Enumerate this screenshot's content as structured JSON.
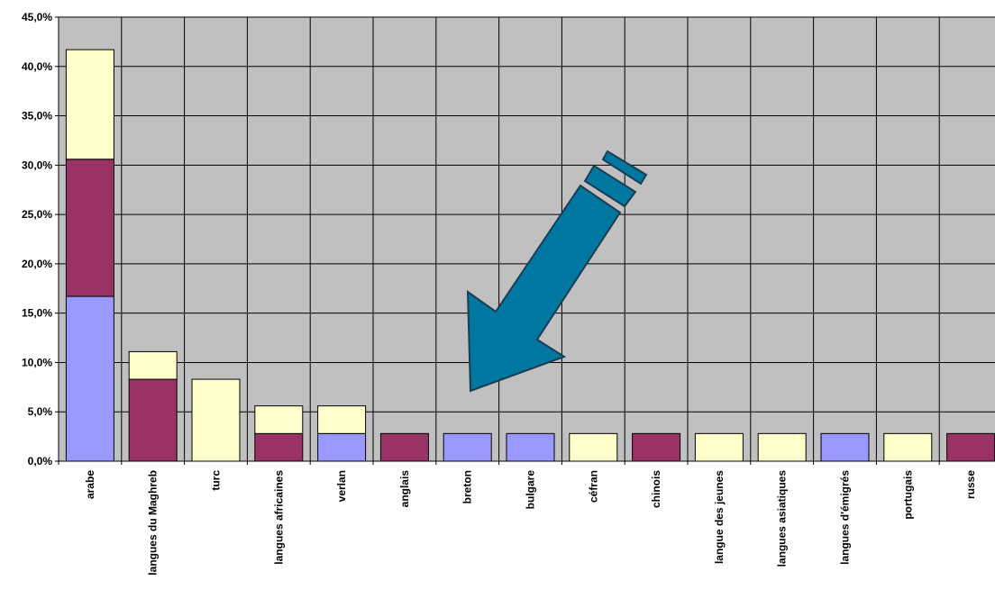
{
  "chart_data": {
    "type": "bar",
    "stacked": true,
    "categories": [
      "arabe",
      "langues du Maghreb",
      "turc",
      "langues africaines",
      "verlan",
      "anglais",
      "breton",
      "bulgare",
      "céfran",
      "chinois",
      "langue des jeunes",
      "langues asiatiques",
      "langues d'émigrés",
      "portugais",
      "russe"
    ],
    "series": [
      {
        "color": "#9999ff",
        "values": [
          16.7,
          0,
          0,
          0,
          2.8,
          0,
          2.8,
          2.8,
          0,
          0,
          0,
          0,
          2.8,
          0,
          0
        ]
      },
      {
        "color": "#993366",
        "values": [
          13.9,
          8.3,
          0,
          2.8,
          0,
          2.8,
          0,
          0,
          0,
          2.8,
          0,
          0,
          0,
          0,
          2.8
        ]
      },
      {
        "color": "#ffffcc",
        "values": [
          11.1,
          2.8,
          8.3,
          2.8,
          2.8,
          0,
          0,
          0,
          2.8,
          0,
          2.8,
          2.8,
          0,
          2.8,
          0
        ]
      }
    ],
    "y_ticks": [
      "0,0%",
      "5,0%",
      "10,0%",
      "15,0%",
      "20,0%",
      "25,0%",
      "30,0%",
      "35,0%",
      "40,0%",
      "45,0%"
    ],
    "ylim": [
      0,
      45
    ],
    "grid": true,
    "plot_background": "#c0c0c0",
    "annotation": {
      "type": "arrow",
      "color": "#0077a0",
      "direction": "down-left"
    }
  }
}
